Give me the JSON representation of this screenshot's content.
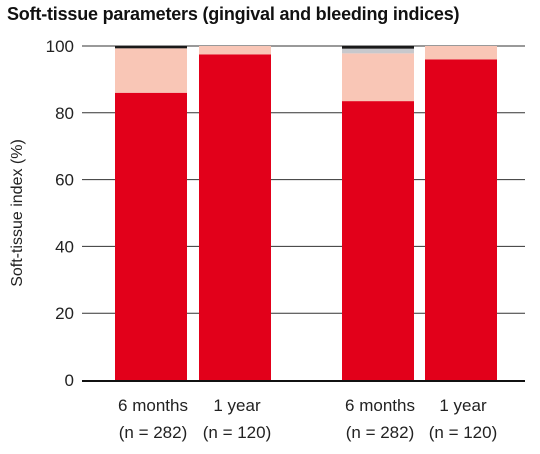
{
  "chart_data": {
    "type": "bar",
    "stacked": true,
    "title": "Soft-tissue parameters (gingival and bleeding indices)",
    "ylabel": "Soft-tissue index (%)",
    "ylim": [
      0,
      100
    ],
    "yticks": [
      0,
      20,
      40,
      60,
      80,
      100
    ],
    "grid": true,
    "categories": [
      {
        "line1": "6 months",
        "line2": "(n = 282)"
      },
      {
        "line1": "1 year",
        "line2": "(n = 120)"
      },
      {
        "line1": "6 months",
        "line2": "(n = 282)"
      },
      {
        "line1": "1 year",
        "line2": "(n = 120)"
      }
    ],
    "groups": [
      [
        0,
        1
      ],
      [
        2,
        3
      ]
    ],
    "series": [
      {
        "color": "#e2001a",
        "values": [
          86,
          97.5,
          83.5,
          96
        ]
      },
      {
        "color": "#f9c6b6",
        "values": [
          13.3,
          2.5,
          14.3,
          4
        ]
      },
      {
        "color": "#c8c8cc",
        "values": [
          0,
          0,
          1.4,
          0
        ]
      },
      {
        "color": "#1a1a1a",
        "values": [
          0.7,
          0,
          0.8,
          0
        ]
      }
    ]
  }
}
